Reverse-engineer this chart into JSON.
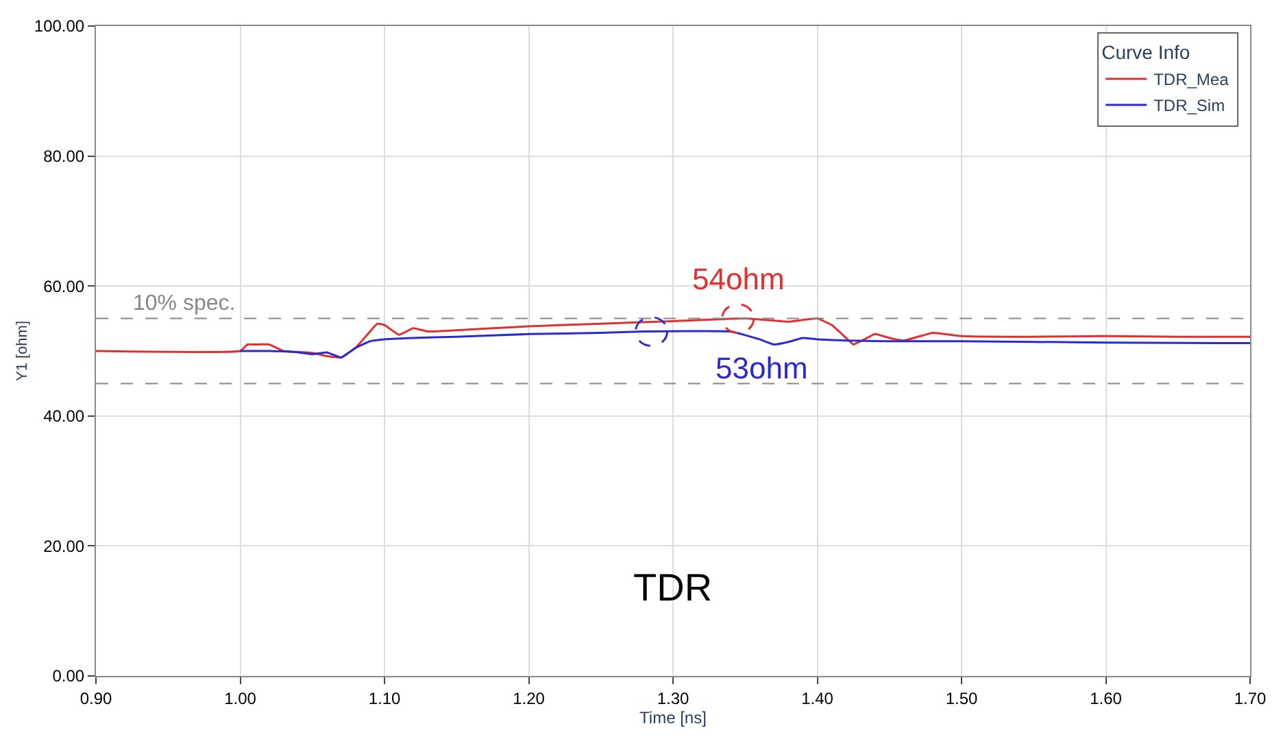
{
  "chart_data": {
    "type": "line",
    "xlabel": "Time [ns]",
    "ylabel": "Y1 [ohm]",
    "legend_title": "Curve Info",
    "legend": "top right",
    "grid": true,
    "xlim": [
      0.9,
      1.7
    ],
    "ylim": [
      0,
      100
    ],
    "xticks": [
      {
        "value": 0.9,
        "label": "0.90"
      },
      {
        "value": 1.0,
        "label": "1.00"
      },
      {
        "value": 1.1,
        "label": "1.10"
      },
      {
        "value": 1.2,
        "label": "1.20"
      },
      {
        "value": 1.3,
        "label": "1.30"
      },
      {
        "value": 1.4,
        "label": "1.40"
      },
      {
        "value": 1.5,
        "label": "1.50"
      },
      {
        "value": 1.6,
        "label": "1.60"
      },
      {
        "value": 1.7,
        "label": "1.70"
      }
    ],
    "yticks": [
      {
        "value": 0,
        "label": "0.00"
      },
      {
        "value": 20,
        "label": "20.00"
      },
      {
        "value": 40,
        "label": "40.00"
      },
      {
        "value": 60,
        "label": "60.00"
      },
      {
        "value": 80,
        "label": "80.00"
      },
      {
        "value": 100,
        "label": "100.00"
      }
    ],
    "series": [
      {
        "name": "TDR_Mea",
        "color": "#e03030",
        "x": [
          0.9,
          1.0,
          1.005,
          1.01,
          1.02,
          1.03,
          1.05,
          1.06,
          1.07,
          1.08,
          1.09,
          1.095,
          1.1,
          1.11,
          1.12,
          1.13,
          1.15,
          1.2,
          1.25,
          1.3,
          1.35,
          1.38,
          1.4,
          1.41,
          1.42,
          1.425,
          1.43,
          1.44,
          1.45,
          1.46,
          1.48,
          1.5,
          1.55,
          1.6,
          1.65,
          1.7
        ],
        "values": [
          50,
          50,
          51,
          51,
          51,
          50,
          49.7,
          49.2,
          49,
          50.5,
          53,
          54.2,
          54,
          52.5,
          53.5,
          53,
          53.2,
          53.8,
          54.2,
          54.6,
          55,
          54.5,
          55,
          54,
          52,
          51,
          51.5,
          52.6,
          52,
          51.6,
          52.8,
          52.3,
          52.2,
          52.3,
          52.2,
          52.2
        ]
      },
      {
        "name": "TDR_Sim",
        "color": "#2a2ad0",
        "x": [
          1.0,
          1.02,
          1.04,
          1.05,
          1.06,
          1.07,
          1.08,
          1.09,
          1.1,
          1.12,
          1.15,
          1.2,
          1.25,
          1.28,
          1.34,
          1.36,
          1.37,
          1.38,
          1.39,
          1.4,
          1.42,
          1.45,
          1.5,
          1.6,
          1.7
        ],
        "values": [
          50,
          50,
          49.8,
          49.5,
          49.8,
          49,
          50.5,
          51.5,
          51.8,
          52,
          52.2,
          52.6,
          52.8,
          53,
          53,
          51.8,
          51,
          51.4,
          52,
          51.8,
          51.6,
          51.5,
          51.5,
          51.3,
          51.2
        ]
      }
    ],
    "ref_lines": [
      {
        "axis": "y",
        "value": 55,
        "label": "10% spec.",
        "color": "#888888",
        "line_style": "dashed"
      },
      {
        "axis": "y",
        "value": 45,
        "color": "#888888",
        "line_style": "dashed"
      }
    ],
    "annotations": [
      {
        "text": "54ohm",
        "x": 1.345,
        "y": 55
      },
      {
        "text": "53ohm",
        "x": 1.285,
        "y": 53
      },
      "TDR"
    ]
  }
}
